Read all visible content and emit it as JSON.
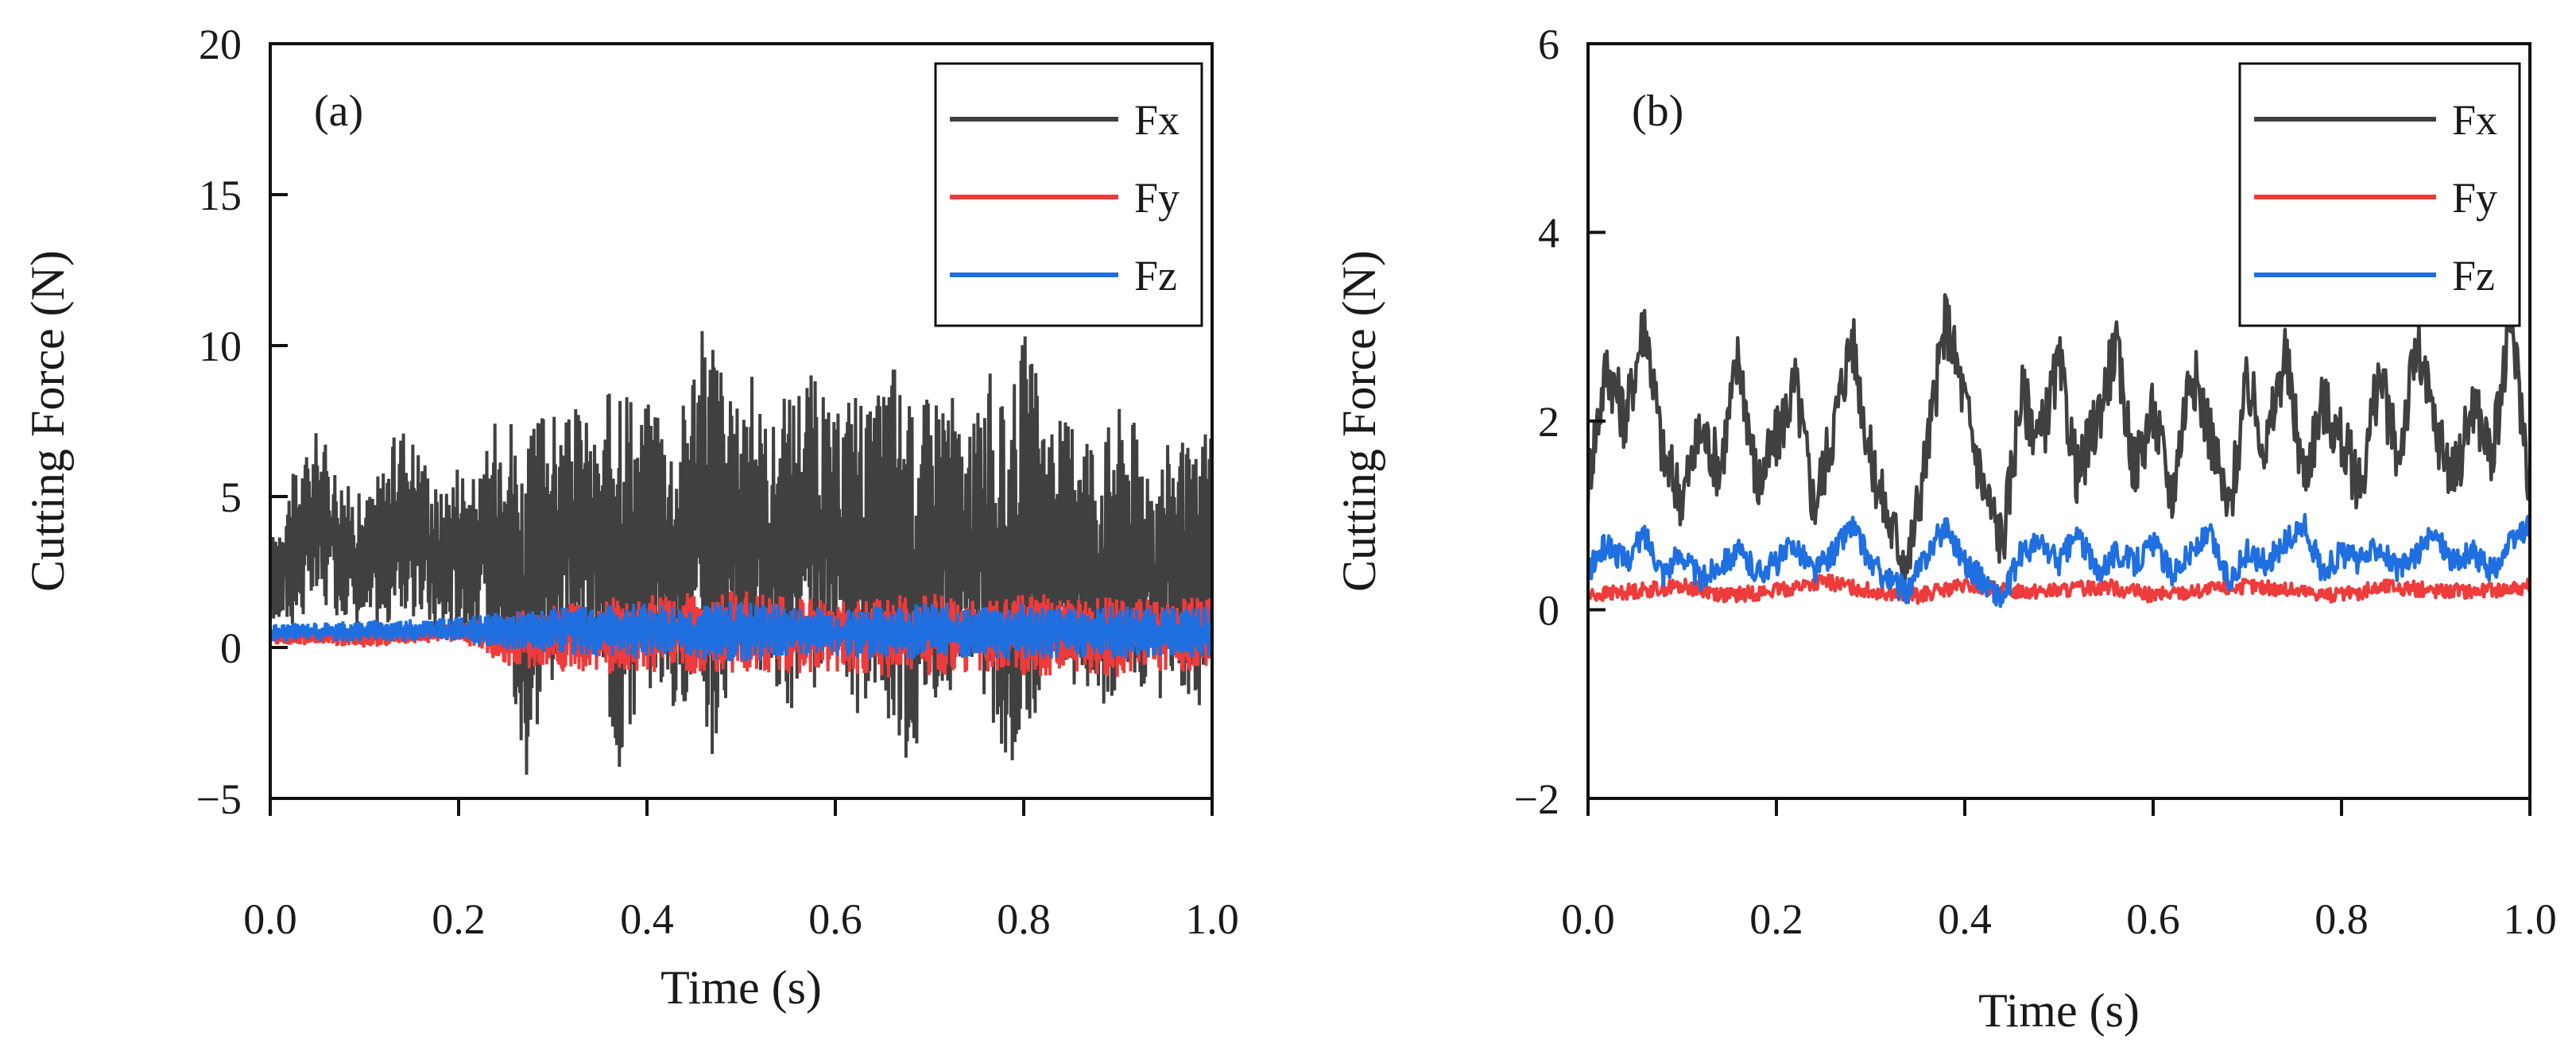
{
  "chart_data": [
    {
      "type": "line",
      "panel_label": "(a)",
      "xlabel": "Time (s)",
      "ylabel": "Cutting Force (N)",
      "xlim": [
        0.0,
        1.0
      ],
      "ylim": [
        -5,
        20
      ],
      "xticks": [
        0.0,
        0.2,
        0.4,
        0.6,
        0.8,
        1.0
      ],
      "xtick_labels": [
        "0.0",
        "0.2",
        "0.4",
        "0.6",
        "0.8",
        "1.0"
      ],
      "yticks": [
        -5,
        0,
        5,
        10,
        15,
        20
      ],
      "ytick_labels": [
        "−5",
        "0",
        "5",
        "10",
        "15",
        "20"
      ],
      "legend_position": "top-right",
      "series": [
        {
          "name": "Fx",
          "color": "#404040",
          "description": "high-frequency oscillation between lower and upper envelope",
          "x": [
            0.0,
            0.02,
            0.05,
            0.08,
            0.1,
            0.12,
            0.14,
            0.16,
            0.18,
            0.2,
            0.22,
            0.25,
            0.27,
            0.29,
            0.31,
            0.33,
            0.35,
            0.37,
            0.39,
            0.41,
            0.43,
            0.45,
            0.47,
            0.49,
            0.51,
            0.53,
            0.55,
            0.57,
            0.6,
            0.62,
            0.64,
            0.66,
            0.68,
            0.7,
            0.72,
            0.74,
            0.76,
            0.78,
            0.8,
            0.82,
            0.84,
            0.86,
            0.88,
            0.9,
            0.92,
            0.94,
            0.96,
            0.98,
            1.0
          ],
          "upper": [
            3.5,
            5.5,
            7.3,
            5.5,
            5.0,
            6.2,
            7.6,
            6.8,
            5.2,
            6.4,
            5.5,
            8.8,
            6.4,
            8.4,
            7.4,
            8.2,
            6.6,
            10.8,
            7.8,
            8.8,
            7.0,
            10.2,
            11.2,
            8.0,
            9.2,
            7.4,
            8.6,
            9.6,
            7.6,
            9.2,
            7.8,
            10.2,
            8.0,
            8.6,
            9.2,
            6.6,
            9.6,
            7.8,
            10.6,
            8.4,
            7.6,
            8.2,
            7.0,
            8.2,
            7.6,
            6.4,
            7.2,
            6.4,
            8.4
          ],
          "lower": [
            0.8,
            0.6,
            1.2,
            1.0,
            0.6,
            0.4,
            1.0,
            0.8,
            0.2,
            0.5,
            0.5,
            -0.8,
            -4.6,
            -1.8,
            -0.6,
            -0.4,
            -0.6,
            -4.4,
            -2.2,
            -1.0,
            -2.4,
            -1.4,
            -4.2,
            -1.4,
            -0.6,
            -1.4,
            -2.2,
            -1.6,
            -1.0,
            -2.6,
            -1.2,
            -3.0,
            -4.0,
            -1.6,
            -1.8,
            -0.6,
            -2.0,
            -4.4,
            -3.2,
            -1.6,
            -1.8,
            -1.0,
            -2.6,
            -1.6,
            -1.2,
            -2.2,
            -1.0,
            -1.8,
            -2.4
          ]
        },
        {
          "name": "Fy",
          "color": "#ee3b3b",
          "description": "oscillation band centered near 0.5 N",
          "x": [
            0.0,
            0.1,
            0.2,
            0.25,
            0.3,
            0.35,
            0.4,
            0.45,
            0.5,
            0.55,
            0.6,
            0.65,
            0.7,
            0.75,
            0.8,
            0.85,
            0.9,
            0.95,
            1.0
          ],
          "upper": [
            0.6,
            0.7,
            0.8,
            1.2,
            1.4,
            1.6,
            1.8,
            1.8,
            1.9,
            1.7,
            1.6,
            1.7,
            1.8,
            1.7,
            1.9,
            1.6,
            1.7,
            1.6,
            1.7
          ],
          "lower": [
            0.1,
            0.0,
            0.2,
            -0.6,
            -0.8,
            -0.9,
            -0.8,
            -1.0,
            -0.8,
            -0.9,
            -0.8,
            -1.0,
            -1.0,
            -0.8,
            -1.1,
            -0.8,
            -1.0,
            -0.8,
            -0.9
          ]
        },
        {
          "name": "Fz",
          "color": "#1f6fe0",
          "description": "oscillation band centered near 0.5 N",
          "x": [
            0.0,
            0.1,
            0.2,
            0.25,
            0.3,
            0.35,
            0.4,
            0.45,
            0.5,
            0.55,
            0.6,
            0.65,
            0.7,
            0.75,
            0.8,
            0.85,
            0.9,
            0.95,
            1.0
          ],
          "upper": [
            0.8,
            0.9,
            1.0,
            1.2,
            1.3,
            1.4,
            1.5,
            1.4,
            1.6,
            1.4,
            1.3,
            1.4,
            1.5,
            1.3,
            1.5,
            1.3,
            1.4,
            1.3,
            1.4
          ],
          "lower": [
            0.2,
            0.2,
            0.2,
            -0.1,
            -0.2,
            -0.3,
            -0.4,
            -0.4,
            -0.5,
            -0.3,
            -0.3,
            -0.4,
            -0.4,
            -0.3,
            -0.5,
            -0.3,
            -0.4,
            -0.3,
            -0.4
          ]
        }
      ]
    },
    {
      "type": "line",
      "panel_label": "(b)",
      "xlabel": "Time (s)",
      "ylabel": "Cutting Force (N)",
      "xlim": [
        0.0,
        1.0
      ],
      "ylim": [
        -2,
        6
      ],
      "xticks": [
        0.0,
        0.2,
        0.4,
        0.6,
        0.8,
        1.0
      ],
      "xtick_labels": [
        "0.0",
        "0.2",
        "0.4",
        "0.6",
        "0.8",
        "1.0"
      ],
      "yticks": [
        -2,
        0,
        2,
        4,
        6
      ],
      "ytick_labels": [
        "−2",
        "0",
        "2",
        "4",
        "6"
      ],
      "legend_position": "top-right",
      "series": [
        {
          "name": "Fx",
          "color": "#404040",
          "description": "noisy signal fluctuating roughly between 0.4 and 3.2 N",
          "x": [
            0.0,
            0.02,
            0.04,
            0.06,
            0.08,
            0.1,
            0.12,
            0.14,
            0.16,
            0.18,
            0.2,
            0.22,
            0.24,
            0.26,
            0.28,
            0.3,
            0.32,
            0.34,
            0.36,
            0.38,
            0.4,
            0.42,
            0.44,
            0.46,
            0.48,
            0.5,
            0.52,
            0.54,
            0.56,
            0.58,
            0.6,
            0.62,
            0.64,
            0.66,
            0.68,
            0.7,
            0.72,
            0.74,
            0.76,
            0.78,
            0.8,
            0.82,
            0.84,
            0.86,
            0.88,
            0.9,
            0.92,
            0.94,
            0.96,
            0.98,
            1.0
          ],
          "values": [
            1.4,
            2.6,
            2.0,
            3.1,
            1.6,
            1.2,
            1.9,
            1.5,
            2.7,
            1.3,
            1.8,
            2.4,
            1.1,
            1.9,
            2.9,
            1.6,
            0.9,
            0.5,
            1.7,
            3.1,
            2.2,
            1.3,
            0.7,
            2.3,
            1.8,
            2.6,
            1.4,
            2.0,
            2.8,
            1.5,
            2.1,
            1.2,
            2.6,
            1.9,
            1.0,
            2.4,
            1.7,
            2.7,
            1.4,
            2.2,
            1.8,
            1.3,
            2.5,
            1.6,
            2.8,
            1.9,
            1.4,
            2.2,
            1.6,
            3.1,
            1.3
          ]
        },
        {
          "name": "Fy",
          "color": "#ee3b3b",
          "description": "low signal around 0.2 N",
          "x": [
            0.0,
            0.05,
            0.1,
            0.15,
            0.2,
            0.25,
            0.3,
            0.35,
            0.4,
            0.45,
            0.5,
            0.55,
            0.6,
            0.65,
            0.7,
            0.75,
            0.8,
            0.85,
            0.9,
            0.95,
            1.0
          ],
          "values": [
            0.15,
            0.2,
            0.25,
            0.15,
            0.2,
            0.3,
            0.2,
            0.15,
            0.25,
            0.2,
            0.2,
            0.25,
            0.15,
            0.2,
            0.25,
            0.2,
            0.15,
            0.25,
            0.2,
            0.2,
            0.25
          ]
        },
        {
          "name": "Fz",
          "color": "#1f6fe0",
          "description": "noisy signal around 0.5 N",
          "x": [
            0.0,
            0.02,
            0.04,
            0.06,
            0.08,
            0.1,
            0.12,
            0.14,
            0.16,
            0.18,
            0.2,
            0.22,
            0.24,
            0.26,
            0.28,
            0.3,
            0.32,
            0.34,
            0.36,
            0.38,
            0.4,
            0.42,
            0.44,
            0.46,
            0.48,
            0.5,
            0.52,
            0.54,
            0.56,
            0.58,
            0.6,
            0.62,
            0.64,
            0.66,
            0.68,
            0.7,
            0.72,
            0.74,
            0.76,
            0.78,
            0.8,
            0.82,
            0.84,
            0.86,
            0.88,
            0.9,
            0.92,
            0.94,
            0.96,
            0.98,
            1.0
          ],
          "values": [
            0.4,
            0.7,
            0.5,
            0.8,
            0.4,
            0.6,
            0.3,
            0.5,
            0.6,
            0.4,
            0.5,
            0.7,
            0.4,
            0.6,
            0.9,
            0.5,
            0.3,
            0.2,
            0.6,
            0.9,
            0.5,
            0.3,
            0.1,
            0.6,
            0.7,
            0.5,
            0.8,
            0.4,
            0.6,
            0.5,
            0.7,
            0.4,
            0.6,
            0.8,
            0.3,
            0.6,
            0.5,
            0.7,
            0.9,
            0.4,
            0.6,
            0.5,
            0.7,
            0.4,
            0.6,
            0.8,
            0.5,
            0.6,
            0.4,
            0.7,
            0.9
          ]
        }
      ]
    }
  ]
}
